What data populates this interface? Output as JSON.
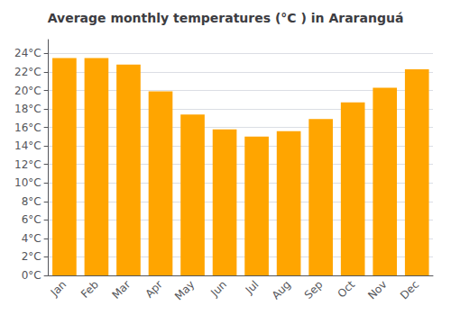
{
  "chart_data": {
    "type": "bar",
    "title": "Average monthly temperatures (°C ) in Araranguá",
    "categories": [
      "Jan",
      "Feb",
      "Mar",
      "Apr",
      "May",
      "Jun",
      "Jul",
      "Aug",
      "Sep",
      "Oct",
      "Nov",
      "Dec"
    ],
    "values": [
      23.5,
      23.5,
      22.8,
      19.9,
      17.4,
      15.8,
      15.0,
      15.6,
      16.9,
      18.7,
      20.3,
      22.3
    ],
    "color": "#FFA500",
    "ylim": [
      0,
      25.5
    ],
    "yticks": [
      {
        "value": 0,
        "label": "0°C"
      },
      {
        "value": 2,
        "label": "2°C"
      },
      {
        "value": 4,
        "label": "4°C"
      },
      {
        "value": 6,
        "label": "6°C"
      },
      {
        "value": 8,
        "label": "8°C"
      },
      {
        "value": 10,
        "label": "10°C"
      },
      {
        "value": 12,
        "label": "12°C"
      },
      {
        "value": 14,
        "label": "14°C"
      },
      {
        "value": 16,
        "label": "16°C"
      },
      {
        "value": 18,
        "label": "18°C"
      },
      {
        "value": 20,
        "label": "20°C"
      },
      {
        "value": 22,
        "label": "22°C"
      },
      {
        "value": 24,
        "label": "24°C"
      }
    ],
    "grid": true
  }
}
